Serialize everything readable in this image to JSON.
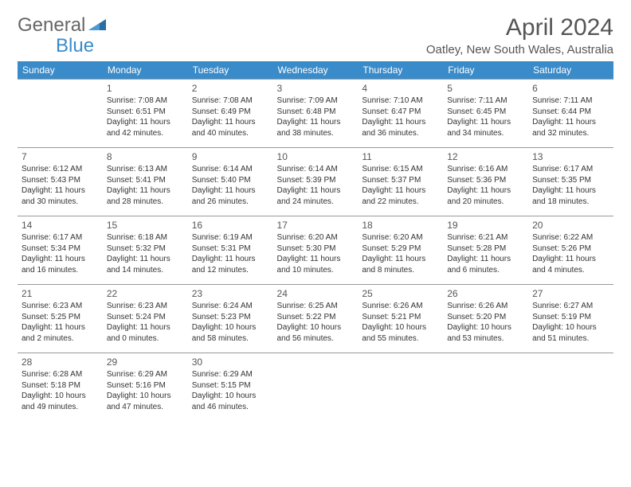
{
  "logo": {
    "part1": "General",
    "part2": "Blue"
  },
  "title": "April 2024",
  "location": "Oatley, New South Wales, Australia",
  "weekdays": [
    "Sunday",
    "Monday",
    "Tuesday",
    "Wednesday",
    "Thursday",
    "Friday",
    "Saturday"
  ],
  "colors": {
    "headerBg": "#3a8bc9",
    "headerText": "#ffffff",
    "border": "#999999"
  },
  "startOffset": 1,
  "days": [
    {
      "n": 1,
      "sr": "7:08 AM",
      "ss": "6:51 PM",
      "dl": "11 hours and 42 minutes."
    },
    {
      "n": 2,
      "sr": "7:08 AM",
      "ss": "6:49 PM",
      "dl": "11 hours and 40 minutes."
    },
    {
      "n": 3,
      "sr": "7:09 AM",
      "ss": "6:48 PM",
      "dl": "11 hours and 38 minutes."
    },
    {
      "n": 4,
      "sr": "7:10 AM",
      "ss": "6:47 PM",
      "dl": "11 hours and 36 minutes."
    },
    {
      "n": 5,
      "sr": "7:11 AM",
      "ss": "6:45 PM",
      "dl": "11 hours and 34 minutes."
    },
    {
      "n": 6,
      "sr": "7:11 AM",
      "ss": "6:44 PM",
      "dl": "11 hours and 32 minutes."
    },
    {
      "n": 7,
      "sr": "6:12 AM",
      "ss": "5:43 PM",
      "dl": "11 hours and 30 minutes."
    },
    {
      "n": 8,
      "sr": "6:13 AM",
      "ss": "5:41 PM",
      "dl": "11 hours and 28 minutes."
    },
    {
      "n": 9,
      "sr": "6:14 AM",
      "ss": "5:40 PM",
      "dl": "11 hours and 26 minutes."
    },
    {
      "n": 10,
      "sr": "6:14 AM",
      "ss": "5:39 PM",
      "dl": "11 hours and 24 minutes."
    },
    {
      "n": 11,
      "sr": "6:15 AM",
      "ss": "5:37 PM",
      "dl": "11 hours and 22 minutes."
    },
    {
      "n": 12,
      "sr": "6:16 AM",
      "ss": "5:36 PM",
      "dl": "11 hours and 20 minutes."
    },
    {
      "n": 13,
      "sr": "6:17 AM",
      "ss": "5:35 PM",
      "dl": "11 hours and 18 minutes."
    },
    {
      "n": 14,
      "sr": "6:17 AM",
      "ss": "5:34 PM",
      "dl": "11 hours and 16 minutes."
    },
    {
      "n": 15,
      "sr": "6:18 AM",
      "ss": "5:32 PM",
      "dl": "11 hours and 14 minutes."
    },
    {
      "n": 16,
      "sr": "6:19 AM",
      "ss": "5:31 PM",
      "dl": "11 hours and 12 minutes."
    },
    {
      "n": 17,
      "sr": "6:20 AM",
      "ss": "5:30 PM",
      "dl": "11 hours and 10 minutes."
    },
    {
      "n": 18,
      "sr": "6:20 AM",
      "ss": "5:29 PM",
      "dl": "11 hours and 8 minutes."
    },
    {
      "n": 19,
      "sr": "6:21 AM",
      "ss": "5:28 PM",
      "dl": "11 hours and 6 minutes."
    },
    {
      "n": 20,
      "sr": "6:22 AM",
      "ss": "5:26 PM",
      "dl": "11 hours and 4 minutes."
    },
    {
      "n": 21,
      "sr": "6:23 AM",
      "ss": "5:25 PM",
      "dl": "11 hours and 2 minutes."
    },
    {
      "n": 22,
      "sr": "6:23 AM",
      "ss": "5:24 PM",
      "dl": "11 hours and 0 minutes."
    },
    {
      "n": 23,
      "sr": "6:24 AM",
      "ss": "5:23 PM",
      "dl": "10 hours and 58 minutes."
    },
    {
      "n": 24,
      "sr": "6:25 AM",
      "ss": "5:22 PM",
      "dl": "10 hours and 56 minutes."
    },
    {
      "n": 25,
      "sr": "6:26 AM",
      "ss": "5:21 PM",
      "dl": "10 hours and 55 minutes."
    },
    {
      "n": 26,
      "sr": "6:26 AM",
      "ss": "5:20 PM",
      "dl": "10 hours and 53 minutes."
    },
    {
      "n": 27,
      "sr": "6:27 AM",
      "ss": "5:19 PM",
      "dl": "10 hours and 51 minutes."
    },
    {
      "n": 28,
      "sr": "6:28 AM",
      "ss": "5:18 PM",
      "dl": "10 hours and 49 minutes."
    },
    {
      "n": 29,
      "sr": "6:29 AM",
      "ss": "5:16 PM",
      "dl": "10 hours and 47 minutes."
    },
    {
      "n": 30,
      "sr": "6:29 AM",
      "ss": "5:15 PM",
      "dl": "10 hours and 46 minutes."
    }
  ],
  "labels": {
    "sunrise": "Sunrise:",
    "sunset": "Sunset:",
    "daylight": "Daylight:"
  }
}
